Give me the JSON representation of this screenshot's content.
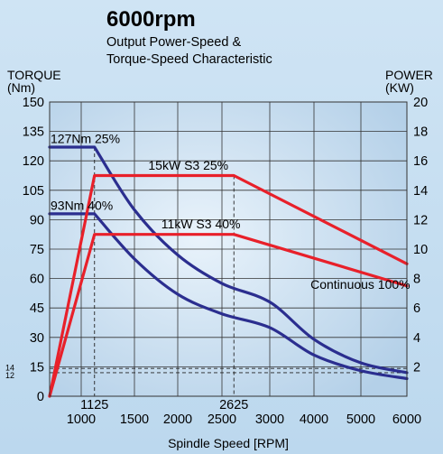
{
  "chart_data": {
    "type": "line",
    "title": "6000rpm",
    "subtitle": [
      "Output Power-Speed &",
      "Torque-Speed Characteristic"
    ],
    "xlabel": "Spindle Speed [RPM]",
    "y_left": {
      "label": [
        "TORQUE",
        "(Nm)"
      ],
      "range": [
        0,
        150
      ],
      "ticks": [
        "150",
        "135",
        "120",
        "105",
        "90",
        "75",
        "60",
        "45",
        "30",
        "15",
        "0"
      ],
      "minor_ticks": [
        "14",
        "12"
      ]
    },
    "y_right": {
      "label": [
        "POWER",
        "(KW)"
      ],
      "range": [
        0,
        20
      ],
      "ticks": [
        "20",
        "18",
        "16",
        "14",
        "12",
        "10",
        "8",
        "6",
        "4",
        "2"
      ]
    },
    "x_ticks": [
      "1000",
      "1500",
      "2000",
      "2500",
      "3000",
      "4000",
      "5000",
      "6000"
    ],
    "x_ref_labels": [
      "1125",
      "2625"
    ],
    "grid": true,
    "colors": {
      "torque": "#2b2e8f",
      "power": "#e8202a",
      "grid": "#333333",
      "plot_bg": "#b9d4ea"
    },
    "series": [
      {
        "axis": "left",
        "kind": "torque",
        "points": [
          [
            0,
            127
          ],
          [
            1125,
            127
          ],
          [
            1500,
            95
          ],
          [
            2000,
            72
          ],
          [
            2500,
            57.5
          ],
          [
            3000,
            48
          ],
          [
            4000,
            29
          ],
          [
            5000,
            17
          ],
          [
            6000,
            12
          ]
        ]
      },
      {
        "axis": "left",
        "kind": "torque",
        "points": [
          [
            0,
            93
          ],
          [
            1125,
            93
          ],
          [
            1500,
            70
          ],
          [
            2000,
            52
          ],
          [
            2500,
            42
          ],
          [
            3000,
            35
          ],
          [
            4000,
            21
          ],
          [
            5000,
            13
          ],
          [
            6000,
            9
          ]
        ]
      },
      {
        "axis": "right",
        "kind": "power",
        "points": [
          [
            0,
            0
          ],
          [
            1125,
            15
          ],
          [
            2625,
            15
          ],
          [
            6000,
            9
          ]
        ]
      },
      {
        "axis": "right",
        "kind": "power",
        "points": [
          [
            0,
            0
          ],
          [
            1125,
            11
          ],
          [
            2625,
            11
          ],
          [
            6000,
            7.5
          ]
        ]
      }
    ],
    "annotations": [
      {
        "text": "127Nm 25%",
        "x": 0,
        "y": 129,
        "axis": "left"
      },
      {
        "text": "93Nm 40%",
        "x": 0,
        "y": 95,
        "axis": "left"
      },
      {
        "text": "15kW S3 25%",
        "x": 1650,
        "y": 15.4,
        "axis": "right"
      },
      {
        "text": "11kW S3 40%",
        "x": 1800,
        "y": 11.4,
        "axis": "right"
      },
      {
        "text": "Continuous 100%",
        "x": 3900,
        "y": 7.3,
        "axis": "right"
      }
    ]
  }
}
